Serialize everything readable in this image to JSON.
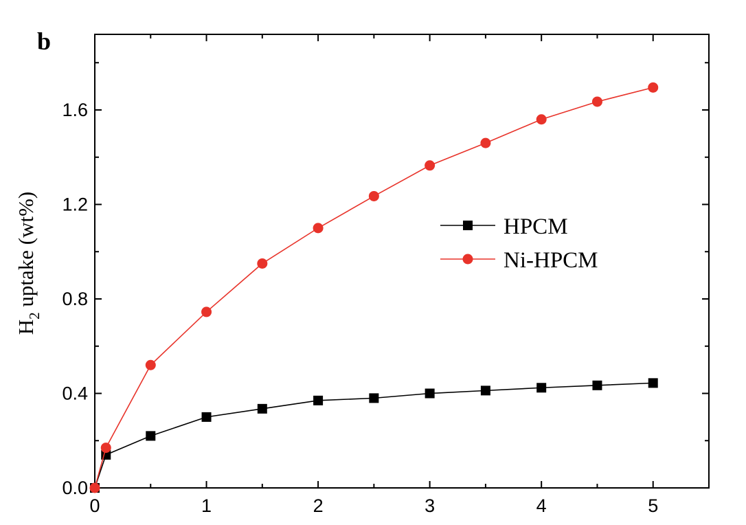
{
  "chart_data": {
    "type": "line",
    "panel_label": "b",
    "xlabel": "",
    "ylabel": {
      "main": "H",
      "subscript": "2",
      "rest": " uptake (wt%)"
    },
    "xlim": [
      0,
      5.5
    ],
    "ylim": [
      0,
      1.92
    ],
    "xticks": [
      0,
      1,
      2,
      3,
      4,
      5
    ],
    "xtick_labels": [
      "0",
      "1",
      "2",
      "3",
      "4",
      "5"
    ],
    "yticks": [
      0,
      0.4,
      0.8,
      1.2,
      1.6
    ],
    "ytick_labels": [
      "0.0",
      "0.4",
      "0.8",
      "1.2",
      "1.6"
    ],
    "grid": false,
    "legend_position": "center-right",
    "series": [
      {
        "name": "HPCM",
        "color": "#000000",
        "marker": "square",
        "x": [
          0,
          0.1,
          0.5,
          1.0,
          1.5,
          2.0,
          2.5,
          3.0,
          3.5,
          4.0,
          4.5,
          5.0
        ],
        "y": [
          0.0,
          0.14,
          0.22,
          0.3,
          0.335,
          0.37,
          0.38,
          0.4,
          0.412,
          0.424,
          0.434,
          0.444
        ]
      },
      {
        "name": "Ni-HPCM",
        "color": "#e8332a",
        "marker": "circle",
        "x": [
          0,
          0.1,
          0.5,
          1.0,
          1.5,
          2.0,
          2.5,
          3.0,
          3.5,
          4.0,
          4.5,
          5.0
        ],
        "y": [
          0.0,
          0.17,
          0.52,
          0.745,
          0.95,
          1.1,
          1.235,
          1.365,
          1.46,
          1.56,
          1.635,
          1.695
        ]
      }
    ]
  }
}
